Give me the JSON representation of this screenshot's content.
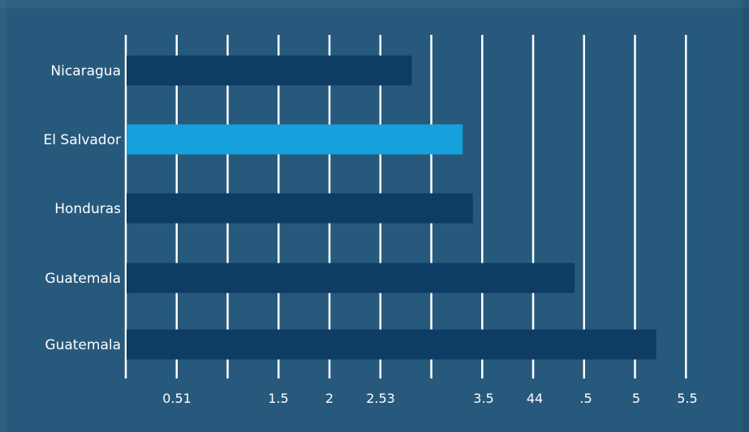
{
  "chart_data": {
    "type": "bar",
    "orientation": "horizontal",
    "categories": [
      "Nicaragua",
      "El Salvador",
      "Honduras",
      "Guatemala",
      "Guatemala"
    ],
    "values": [
      2.8,
      3.3,
      3.4,
      4.4,
      5.2
    ],
    "highlight_index": 1,
    "tick_labels": [
      "0.51",
      "1.5",
      "2",
      "2.53",
      "3.5",
      "44",
      ".5",
      "5",
      "5.5"
    ],
    "grid": true,
    "colors": {
      "background": "#27597d",
      "bar": "#0d3c64",
      "highlight": "#15a2dc",
      "gridline": "#ffffff",
      "text": "#ffffff"
    }
  }
}
